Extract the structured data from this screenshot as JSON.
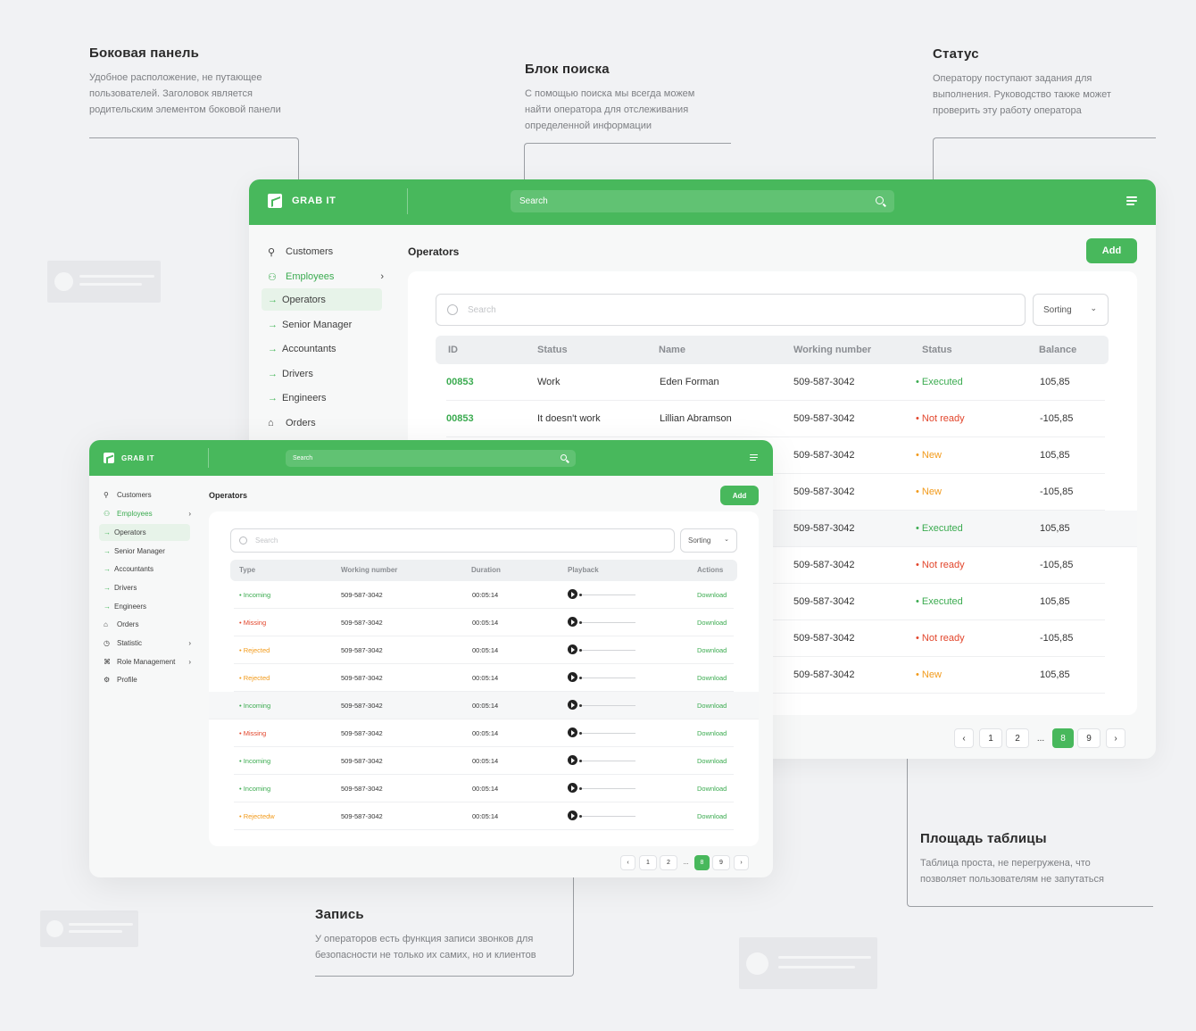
{
  "annotations": {
    "sidebar": {
      "title": "Боковая панель",
      "text": "Удобное расположение, не путающее пользователей. Заголовок является родительским элементом боковой панели"
    },
    "search": {
      "title": "Блок поиска",
      "text": "С помощью поиска мы всегда можем найти оператора для отслеживания определенной информации"
    },
    "status": {
      "title": "Статус",
      "text": "Оператору поступают задания для выполнения. Руководство также может проверить эту работу оператора"
    },
    "table": {
      "title": "Площадь таблицы",
      "text": "Таблица проста, не перегружена, что позволяет пользователям не запутаться"
    },
    "record": {
      "title": "Запись",
      "text": "У операторов есть функция записи звонков для безопасности не только их самих, но и клиентов"
    }
  },
  "app": {
    "brand": "GRAB IT",
    "search_placeholder": "Search",
    "accent": "#48b85c"
  },
  "sidebar": {
    "items": [
      {
        "label": "Customers",
        "icon": "user-icon"
      },
      {
        "label": "Employees",
        "icon": "users-icon"
      },
      {
        "label": "Operators",
        "icon": "arrow-right-icon"
      },
      {
        "label": "Senior Manager",
        "icon": "arrow-right-icon"
      },
      {
        "label": "Accountants",
        "icon": "arrow-right-icon"
      },
      {
        "label": "Drivers",
        "icon": "arrow-right-icon"
      },
      {
        "label": "Engineers",
        "icon": "arrow-right-icon"
      },
      {
        "label": "Orders",
        "icon": "bag-icon"
      },
      {
        "label": "Statistic",
        "icon": "clock-icon"
      },
      {
        "label": "Role Management",
        "icon": "command-icon"
      },
      {
        "label": "Profile",
        "icon": "gear-icon"
      }
    ]
  },
  "main": {
    "title": "Operators",
    "add_label": "Add",
    "filter_placeholder": "Search",
    "sorting_label": "Sorting"
  },
  "operators_table": {
    "columns": [
      "ID",
      "Status",
      "Name",
      "Working number",
      "Status",
      "Balance"
    ],
    "rows": [
      {
        "id": "00853",
        "work": "Work",
        "name": "Eden Forman",
        "number": "509-587-3042",
        "status": "• Executed",
        "balance": "105,85"
      },
      {
        "id": "00853",
        "work": "It doesn't work",
        "name": "Lillian Abramson",
        "number": "509-587-3042",
        "status": "• Not ready",
        "balance": "-105,85"
      },
      {
        "number": "509-587-3042",
        "status": "• New",
        "balance": "105,85"
      },
      {
        "number": "509-587-3042",
        "status": "• New",
        "balance": "-105,85"
      },
      {
        "number": "509-587-3042",
        "status": "• Executed",
        "balance": "105,85"
      },
      {
        "number": "509-587-3042",
        "status": "• Not ready",
        "balance": "-105,85"
      },
      {
        "number": "509-587-3042",
        "status": "• Executed",
        "balance": "105,85"
      },
      {
        "number": "509-587-3042",
        "status": "• Not ready",
        "balance": "-105,85"
      },
      {
        "number": "509-587-3042",
        "status": "• New",
        "balance": "105,85"
      }
    ]
  },
  "calls_table": {
    "columns": [
      "Type",
      "Working number",
      "Duration",
      "Playback",
      "Actions"
    ],
    "rows": [
      {
        "type": "• Incoming",
        "number": "509-587-3042",
        "duration": "00:05:14",
        "action": "Download"
      },
      {
        "type": "• Missing",
        "number": "509-587-3042",
        "duration": "00:05:14",
        "action": "Download"
      },
      {
        "type": "• Rejected",
        "number": "509-587-3042",
        "duration": "00:05:14",
        "action": "Download"
      },
      {
        "type": "• Rejected",
        "number": "509-587-3042",
        "duration": "00:05:14",
        "action": "Download"
      },
      {
        "type": "• Incoming",
        "number": "509-587-3042",
        "duration": "00:05:14",
        "action": "Download"
      },
      {
        "type": "• Missing",
        "number": "509-587-3042",
        "duration": "00:05:14",
        "action": "Download"
      },
      {
        "type": "• Incoming",
        "number": "509-587-3042",
        "duration": "00:05:14",
        "action": "Download"
      },
      {
        "type": "• Incoming",
        "number": "509-587-3042",
        "duration": "00:05:14",
        "action": "Download"
      },
      {
        "type": "• Rejectedw",
        "number": "509-587-3042",
        "duration": "00:05:14",
        "action": "Download"
      }
    ]
  },
  "pagination": {
    "prev": "‹",
    "pages": [
      "1",
      "2",
      "...",
      "8",
      "9"
    ],
    "next": "›",
    "current": "8"
  }
}
